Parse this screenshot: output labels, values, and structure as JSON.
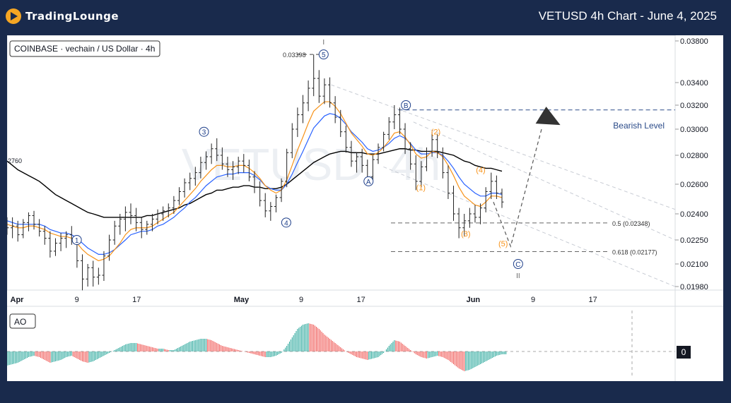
{
  "header": {
    "brand": "TradingLounge",
    "title": "VETUSD 4h Chart - June 4, 2025"
  },
  "legend": {
    "symbol": "COINBASE · vechain / US Dollar · 4h"
  },
  "indicator": {
    "name": "AO",
    "zero_label": "0"
  },
  "colors": {
    "up": "#26a69a",
    "down": "#ef5350",
    "ema_fast": "#f7931a",
    "ema_mid": "#2962ff",
    "ema_slow": "#000000",
    "wave": "#1e3f8a",
    "sub_wave": "#f7931a",
    "bearish": "#2a4a88"
  },
  "chart_data": {
    "type": "candlestick",
    "title": "VETUSD 4h Chart - June 4, 2025",
    "y_axis_labels": [
      "0.03800",
      "0.03400",
      "0.03200",
      "0.03000",
      "0.02800",
      "0.02600",
      "0.02400",
      "0.02250",
      "0.02100",
      "0.01980"
    ],
    "x_axis_labels": [
      "Apr",
      "9",
      "17",
      "May",
      "9",
      "17",
      "Jun",
      "9",
      "17"
    ],
    "left_price_label": "2760",
    "annotations": {
      "high_label": "0.03398",
      "bearish_level": {
        "label": "Bearish Level",
        "value": 0.0316
      },
      "fib_05": {
        "label": "0.5 (0.02348)",
        "value": 0.02348
      },
      "fib_0618": {
        "label": "0.618 (0.02177)",
        "value": 0.02177
      },
      "wave_roman_top": "I",
      "wave_roman_bottom": "II",
      "waves": [
        {
          "label": "1",
          "date": "2025-04-09",
          "price": 0.0225
        },
        {
          "label": "3",
          "date": "2025-04-26",
          "price": 0.0298
        },
        {
          "label": "4",
          "date": "2025-05-07",
          "price": 0.0235
        },
        {
          "label": "5",
          "date": "2025-05-12",
          "price": 0.0367
        },
        {
          "label": "A",
          "date": "2025-05-18",
          "price": 0.0262
        },
        {
          "label": "B",
          "date": "2025-05-23",
          "price": 0.032
        },
        {
          "label": "C",
          "date": "2025-06-07",
          "price": 0.021
        }
      ],
      "sub_waves": [
        {
          "label": "(1)",
          "date": "2025-05-25",
          "price": 0.0256
        },
        {
          "label": "(2)",
          "date": "2025-05-27",
          "price": 0.0296
        },
        {
          "label": "(3)",
          "date": "2025-05-31",
          "price": 0.0227
        },
        {
          "label": "(4)",
          "date": "2025-06-02",
          "price": 0.0268
        },
        {
          "label": "(5)",
          "date": "2025-06-05",
          "price": 0.0221
        }
      ]
    },
    "candles": [
      [
        0.0235,
        0.0238,
        0.0228,
        0.0232
      ],
      [
        0.0232,
        0.0238,
        0.0226,
        0.0233
      ],
      [
        0.0233,
        0.0236,
        0.0224,
        0.0228
      ],
      [
        0.0228,
        0.0237,
        0.0226,
        0.0235
      ],
      [
        0.0235,
        0.0241,
        0.023,
        0.0239
      ],
      [
        0.0239,
        0.0242,
        0.0231,
        0.0234
      ],
      [
        0.0234,
        0.0237,
        0.0227,
        0.023
      ],
      [
        0.023,
        0.0233,
        0.0222,
        0.0226
      ],
      [
        0.0226,
        0.023,
        0.0214,
        0.0218
      ],
      [
        0.0218,
        0.0226,
        0.0215,
        0.0223
      ],
      [
        0.0223,
        0.0229,
        0.0218,
        0.0226
      ],
      [
        0.0226,
        0.023,
        0.022,
        0.0228
      ],
      [
        0.0228,
        0.0233,
        0.0222,
        0.0225
      ],
      [
        0.0225,
        0.0227,
        0.0208,
        0.0212
      ],
      [
        0.0212,
        0.0216,
        0.0196,
        0.0202
      ],
      [
        0.0202,
        0.021,
        0.0198,
        0.0208
      ],
      [
        0.0208,
        0.0212,
        0.0198,
        0.0203
      ],
      [
        0.0203,
        0.0208,
        0.0199,
        0.0204
      ],
      [
        0.0204,
        0.0218,
        0.0201,
        0.0215
      ],
      [
        0.0215,
        0.0228,
        0.0212,
        0.0225
      ],
      [
        0.0225,
        0.0236,
        0.0222,
        0.0233
      ],
      [
        0.0233,
        0.024,
        0.0228,
        0.0237
      ],
      [
        0.0237,
        0.0245,
        0.023,
        0.0241
      ],
      [
        0.0241,
        0.0247,
        0.0234,
        0.0239
      ],
      [
        0.0239,
        0.0244,
        0.023,
        0.0235
      ],
      [
        0.0235,
        0.0238,
        0.0226,
        0.0231
      ],
      [
        0.0231,
        0.0236,
        0.0228,
        0.0234
      ],
      [
        0.0234,
        0.024,
        0.023,
        0.0237
      ],
      [
        0.0237,
        0.0243,
        0.0234,
        0.024
      ],
      [
        0.024,
        0.0245,
        0.0236,
        0.0242
      ],
      [
        0.0242,
        0.0247,
        0.0238,
        0.0244
      ],
      [
        0.0244,
        0.0252,
        0.024,
        0.0249
      ],
      [
        0.0249,
        0.0258,
        0.0246,
        0.0255
      ],
      [
        0.0255,
        0.0264,
        0.0251,
        0.0261
      ],
      [
        0.0261,
        0.0268,
        0.0256,
        0.0264
      ],
      [
        0.0264,
        0.0272,
        0.0259,
        0.0268
      ],
      [
        0.0268,
        0.0279,
        0.0264,
        0.0275
      ],
      [
        0.0275,
        0.0283,
        0.027,
        0.0279
      ],
      [
        0.0279,
        0.0289,
        0.0274,
        0.0285
      ],
      [
        0.0285,
        0.0293,
        0.0276,
        0.028
      ],
      [
        0.028,
        0.0286,
        0.027,
        0.0274
      ],
      [
        0.0274,
        0.0279,
        0.0265,
        0.027
      ],
      [
        0.027,
        0.0276,
        0.0263,
        0.0272
      ],
      [
        0.0272,
        0.0279,
        0.0267,
        0.0276
      ],
      [
        0.0276,
        0.0281,
        0.0268,
        0.0273
      ],
      [
        0.0273,
        0.0277,
        0.0262,
        0.0265
      ],
      [
        0.0265,
        0.0269,
        0.0254,
        0.0258
      ],
      [
        0.0258,
        0.0262,
        0.0245,
        0.0249
      ],
      [
        0.0249,
        0.0254,
        0.0238,
        0.0242
      ],
      [
        0.0242,
        0.0248,
        0.0236,
        0.0245
      ],
      [
        0.0245,
        0.0253,
        0.0241,
        0.0251
      ],
      [
        0.0251,
        0.0264,
        0.0248,
        0.0262
      ],
      [
        0.0262,
        0.0285,
        0.0258,
        0.0282
      ],
      [
        0.0282,
        0.0305,
        0.0278,
        0.03
      ],
      [
        0.03,
        0.0318,
        0.0294,
        0.0312
      ],
      [
        0.0312,
        0.0329,
        0.0305,
        0.0322
      ],
      [
        0.0322,
        0.0342,
        0.0315,
        0.0335
      ],
      [
        0.0335,
        0.0367,
        0.0328,
        0.0344
      ],
      [
        0.0344,
        0.0352,
        0.0322,
        0.0328
      ],
      [
        0.0328,
        0.0344,
        0.0321,
        0.0338
      ],
      [
        0.0338,
        0.0345,
        0.0318,
        0.0322
      ],
      [
        0.0322,
        0.0328,
        0.0305,
        0.031
      ],
      [
        0.031,
        0.0316,
        0.0294,
        0.0298
      ],
      [
        0.0298,
        0.0303,
        0.0282,
        0.0286
      ],
      [
        0.0286,
        0.0291,
        0.0272,
        0.0276
      ],
      [
        0.0276,
        0.0282,
        0.0268,
        0.0279
      ],
      [
        0.0279,
        0.0285,
        0.0268,
        0.0273
      ],
      [
        0.0273,
        0.0277,
        0.026,
        0.0265
      ],
      [
        0.0265,
        0.028,
        0.0262,
        0.0277
      ],
      [
        0.0277,
        0.0289,
        0.0274,
        0.0286
      ],
      [
        0.0286,
        0.0298,
        0.0283,
        0.0296
      ],
      [
        0.0296,
        0.031,
        0.0292,
        0.0306
      ],
      [
        0.0306,
        0.032,
        0.03,
        0.0312
      ],
      [
        0.0312,
        0.0318,
        0.0296,
        0.03
      ],
      [
        0.03,
        0.0305,
        0.0281,
        0.0285
      ],
      [
        0.0285,
        0.029,
        0.027,
        0.0274
      ],
      [
        0.0274,
        0.028,
        0.0256,
        0.0262
      ],
      [
        0.0262,
        0.0276,
        0.0258,
        0.0272
      ],
      [
        0.0272,
        0.0286,
        0.0269,
        0.0283
      ],
      [
        0.0283,
        0.0298,
        0.0279,
        0.0292
      ],
      [
        0.0292,
        0.0296,
        0.0278,
        0.0282
      ],
      [
        0.0282,
        0.0286,
        0.0264,
        0.0268
      ],
      [
        0.0268,
        0.0273,
        0.025,
        0.0254
      ],
      [
        0.0254,
        0.0259,
        0.0236,
        0.024
      ],
      [
        0.024,
        0.0244,
        0.0226,
        0.0232
      ],
      [
        0.0232,
        0.024,
        0.0227,
        0.0236
      ],
      [
        0.0236,
        0.0244,
        0.0232,
        0.024
      ],
      [
        0.024,
        0.0246,
        0.0235,
        0.0238
      ],
      [
        0.0238,
        0.0247,
        0.0234,
        0.0244
      ],
      [
        0.0244,
        0.0258,
        0.0241,
        0.0255
      ],
      [
        0.0255,
        0.0268,
        0.025,
        0.0262
      ],
      [
        0.0262,
        0.0266,
        0.025,
        0.0254
      ],
      [
        0.0254,
        0.0257,
        0.0244,
        0.0248
      ]
    ],
    "ema_fast": [
      0.0234,
      0.0233,
      0.0232,
      0.0232,
      0.0233,
      0.0233,
      0.0232,
      0.0231,
      0.0229,
      0.0228,
      0.0227,
      0.0227,
      0.0226,
      0.0223,
      0.0219,
      0.0216,
      0.0214,
      0.0212,
      0.0213,
      0.0215,
      0.0219,
      0.0223,
      0.0228,
      0.0231,
      0.0232,
      0.0232,
      0.0232,
      0.0233,
      0.0235,
      0.0237,
      0.0239,
      0.0241,
      0.0245,
      0.0249,
      0.0253,
      0.0257,
      0.0262,
      0.0266,
      0.027,
      0.0273,
      0.0273,
      0.0272,
      0.0272,
      0.0273,
      0.0273,
      0.0271,
      0.0268,
      0.0264,
      0.0259,
      0.0256,
      0.0254,
      0.0256,
      0.0263,
      0.0273,
      0.0284,
      0.0294,
      0.0305,
      0.0315,
      0.0319,
      0.0323,
      0.0323,
      0.0319,
      0.0313,
      0.0305,
      0.0297,
      0.0292,
      0.0287,
      0.0281,
      0.028,
      0.0282,
      0.0286,
      0.0291,
      0.0297,
      0.0298,
      0.0294,
      0.0288,
      0.0281,
      0.0278,
      0.0279,
      0.0283,
      0.0282,
      0.0279,
      0.0273,
      0.0266,
      0.0258,
      0.0252,
      0.0249,
      0.0246,
      0.0245,
      0.0248,
      0.0252,
      0.0252,
      0.0251
    ],
    "ema_mid": [
      0.0236,
      0.0235,
      0.0234,
      0.0234,
      0.0234,
      0.0234,
      0.0234,
      0.0233,
      0.0231,
      0.023,
      0.0229,
      0.0229,
      0.0228,
      0.0226,
      0.0223,
      0.022,
      0.0218,
      0.0216,
      0.0216,
      0.0217,
      0.0219,
      0.0222,
      0.0225,
      0.0228,
      0.0229,
      0.023,
      0.023,
      0.0231,
      0.0233,
      0.0234,
      0.0236,
      0.0238,
      0.0241,
      0.0244,
      0.0248,
      0.0251,
      0.0255,
      0.0259,
      0.0262,
      0.0265,
      0.0266,
      0.0267,
      0.0267,
      0.0268,
      0.0268,
      0.0268,
      0.0266,
      0.0263,
      0.0259,
      0.0257,
      0.0256,
      0.0256,
      0.026,
      0.0267,
      0.0275,
      0.0283,
      0.0292,
      0.0301,
      0.0306,
      0.0311,
      0.0313,
      0.0312,
      0.0309,
      0.0304,
      0.0298,
      0.0294,
      0.029,
      0.0285,
      0.0283,
      0.0284,
      0.0286,
      0.0289,
      0.0293,
      0.0295,
      0.0293,
      0.0289,
      0.0284,
      0.0281,
      0.0281,
      0.0282,
      0.0282,
      0.028,
      0.0276,
      0.0271,
      0.0265,
      0.026,
      0.0257,
      0.0254,
      0.0252,
      0.0252,
      0.0254,
      0.0254,
      0.0253
    ],
    "ema_slow": [
      0.0276,
      0.0273,
      0.027,
      0.0268,
      0.0266,
      0.0264,
      0.0262,
      0.0259,
      0.0256,
      0.0253,
      0.0251,
      0.0249,
      0.0247,
      0.0245,
      0.0243,
      0.0241,
      0.024,
      0.0239,
      0.0238,
      0.0238,
      0.0238,
      0.0238,
      0.0238,
      0.0238,
      0.0238,
      0.0238,
      0.0239,
      0.0239,
      0.024,
      0.0241,
      0.0242,
      0.0243,
      0.0244,
      0.0246,
      0.0247,
      0.0249,
      0.0251,
      0.0253,
      0.0254,
      0.0256,
      0.0256,
      0.0257,
      0.0258,
      0.0258,
      0.0259,
      0.0259,
      0.0258,
      0.0258,
      0.0257,
      0.0257,
      0.0257,
      0.0258,
      0.026,
      0.0263,
      0.0266,
      0.0269,
      0.0272,
      0.0275,
      0.0277,
      0.0279,
      0.0281,
      0.0282,
      0.0283,
      0.0283,
      0.0282,
      0.0282,
      0.0282,
      0.0281,
      0.0281,
      0.0281,
      0.0282,
      0.0283,
      0.0284,
      0.0285,
      0.0285,
      0.0284,
      0.0284,
      0.0283,
      0.0283,
      0.0283,
      0.0283,
      0.0282,
      0.0281,
      0.028,
      0.0278,
      0.0276,
      0.0275,
      0.0273,
      0.0272,
      0.0271,
      0.0271,
      0.027,
      0.0269
    ],
    "ao": [
      -0.001,
      -0.0009,
      -0.0008,
      -0.0006,
      -0.0004,
      -0.0003,
      -0.0004,
      -0.0006,
      -0.0008,
      -0.0007,
      -0.0006,
      -0.0004,
      -0.0003,
      -0.0005,
      -0.0007,
      -0.0008,
      -0.0007,
      -0.0005,
      -0.0003,
      -0.0001,
      0.0001,
      0.0003,
      0.0005,
      0.0006,
      0.0006,
      0.0005,
      0.0004,
      0.0003,
      0.0002,
      0.0002,
      0.0001,
      0.0001,
      0.0003,
      0.0005,
      0.0007,
      0.0008,
      0.0009,
      0.0009,
      0.0008,
      0.0006,
      0.0004,
      0.0003,
      0.0002,
      0.0001,
      0.0,
      -0.0001,
      -0.0002,
      -0.0003,
      -0.0004,
      -0.0004,
      -0.0003,
      -0.0001,
      0.0004,
      0.001,
      0.0016,
      0.0019,
      0.002,
      0.0019,
      0.0016,
      0.0012,
      0.0009,
      0.0006,
      0.0003,
      0.0,
      -0.0002,
      -0.0004,
      -0.0005,
      -0.0006,
      -0.0005,
      -0.0004,
      -0.0001,
      0.0004,
      0.0008,
      0.0007,
      0.0004,
      0.0001,
      -0.0002,
      -0.0004,
      -0.0005,
      -0.0004,
      -0.0003,
      -0.0004,
      -0.0006,
      -0.0009,
      -0.0012,
      -0.0014,
      -0.0013,
      -0.0011,
      -0.0009,
      -0.0007,
      -0.0005,
      -0.0003,
      -0.0002
    ]
  }
}
